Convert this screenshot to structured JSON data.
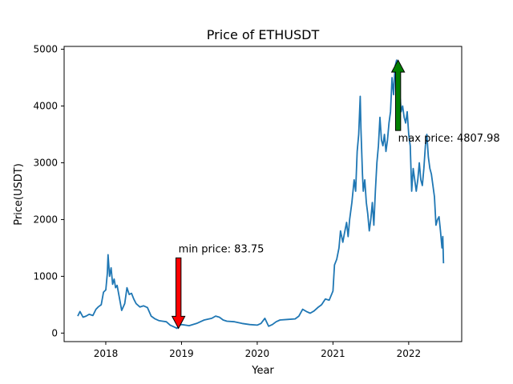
{
  "chart_data": {
    "type": "line",
    "title": "Price of ETHUSDT",
    "xlabel": "Year",
    "ylabel": "Price(USDT)",
    "xlim": [
      2017.45,
      2022.7
    ],
    "ylim": [
      -150,
      5050
    ],
    "xticks": [
      2018,
      2019,
      2020,
      2021,
      2022
    ],
    "yticks": [
      0,
      1000,
      2000,
      3000,
      4000,
      5000
    ],
    "grid": false,
    "series": [
      {
        "color": "#1f77b4",
        "x": [
          2017.63,
          2017.66,
          2017.7,
          2017.74,
          2017.78,
          2017.83,
          2017.87,
          2017.9,
          2017.94,
          2017.97,
          2018.0,
          2018.02,
          2018.03,
          2018.05,
          2018.07,
          2018.09,
          2018.11,
          2018.13,
          2018.15,
          2018.18,
          2018.21,
          2018.25,
          2018.28,
          2018.31,
          2018.34,
          2018.37,
          2018.4,
          2018.45,
          2018.5,
          2018.55,
          2018.6,
          2018.65,
          2018.7,
          2018.75,
          2018.8,
          2018.85,
          2018.9,
          2018.94,
          2018.96,
          2019.0,
          2019.05,
          2019.1,
          2019.2,
          2019.3,
          2019.4,
          2019.45,
          2019.5,
          2019.55,
          2019.6,
          2019.7,
          2019.8,
          2019.9,
          2020.0,
          2020.05,
          2020.1,
          2020.15,
          2020.2,
          2020.25,
          2020.3,
          2020.4,
          2020.5,
          2020.55,
          2020.6,
          2020.65,
          2020.7,
          2020.75,
          2020.8,
          2020.85,
          2020.9,
          2020.95,
          2021.0,
          2021.02,
          2021.05,
          2021.08,
          2021.1,
          2021.13,
          2021.15,
          2021.18,
          2021.2,
          2021.22,
          2021.25,
          2021.28,
          2021.3,
          2021.32,
          2021.34,
          2021.36,
          2021.37,
          2021.39,
          2021.4,
          2021.42,
          2021.44,
          2021.46,
          2021.48,
          2021.5,
          2021.52,
          2021.54,
          2021.56,
          2021.58,
          2021.6,
          2021.62,
          2021.64,
          2021.66,
          2021.68,
          2021.7,
          2021.72,
          2021.74,
          2021.76,
          2021.78,
          2021.8,
          2021.82,
          2021.84,
          2021.86,
          2021.87,
          2021.89,
          2021.9,
          2021.92,
          2021.94,
          2021.96,
          2021.98,
          2022.0,
          2022.02,
          2022.04,
          2022.06,
          2022.08,
          2022.1,
          2022.12,
          2022.14,
          2022.16,
          2022.18,
          2022.2,
          2022.22,
          2022.24,
          2022.26,
          2022.28,
          2022.3,
          2022.32,
          2022.34,
          2022.36,
          2022.38,
          2022.4,
          2022.42,
          2022.44,
          2022.45,
          2022.46
        ],
        "y": [
          300,
          380,
          280,
          300,
          330,
          310,
          420,
          460,
          500,
          720,
          760,
          1050,
          1380,
          1000,
          1150,
          860,
          950,
          800,
          840,
          620,
          400,
          520,
          800,
          680,
          700,
          600,
          520,
          460,
          480,
          450,
          300,
          250,
          220,
          210,
          200,
          140,
          110,
          84,
          130,
          150,
          140,
          130,
          170,
          230,
          260,
          300,
          280,
          230,
          210,
          200,
          170,
          150,
          140,
          170,
          260,
          120,
          150,
          200,
          230,
          240,
          250,
          300,
          420,
          380,
          350,
          390,
          450,
          500,
          600,
          580,
          740,
          1200,
          1300,
          1500,
          1800,
          1600,
          1750,
          1950,
          1700,
          2000,
          2300,
          2700,
          2500,
          3200,
          3500,
          4170,
          3600,
          2800,
          2500,
          2700,
          2300,
          2100,
          1800,
          2000,
          2300,
          1900,
          2500,
          3000,
          3300,
          3800,
          3400,
          3300,
          3500,
          3200,
          3400,
          3700,
          3900,
          4500,
          4200,
          4700,
          4808,
          4500,
          4300,
          4100,
          3900,
          4000,
          3800,
          3700,
          3900,
          3500,
          3300,
          2500,
          2900,
          2700,
          2500,
          2700,
          3000,
          2700,
          2600,
          2900,
          3300,
          3500,
          3100,
          2900,
          2800,
          2600,
          2400,
          1900,
          2000,
          2050,
          1800,
          1500,
          1700,
          1230
        ]
      }
    ],
    "annotations": [
      {
        "text": "min price: 83.75",
        "point": [
          2018.96,
          84
        ],
        "arrow_color": "#ff0000",
        "direction": "down"
      },
      {
        "text": "max price: 4807.98",
        "point": [
          2021.86,
          4808
        ],
        "arrow_color": "#008000",
        "direction": "up"
      }
    ]
  }
}
